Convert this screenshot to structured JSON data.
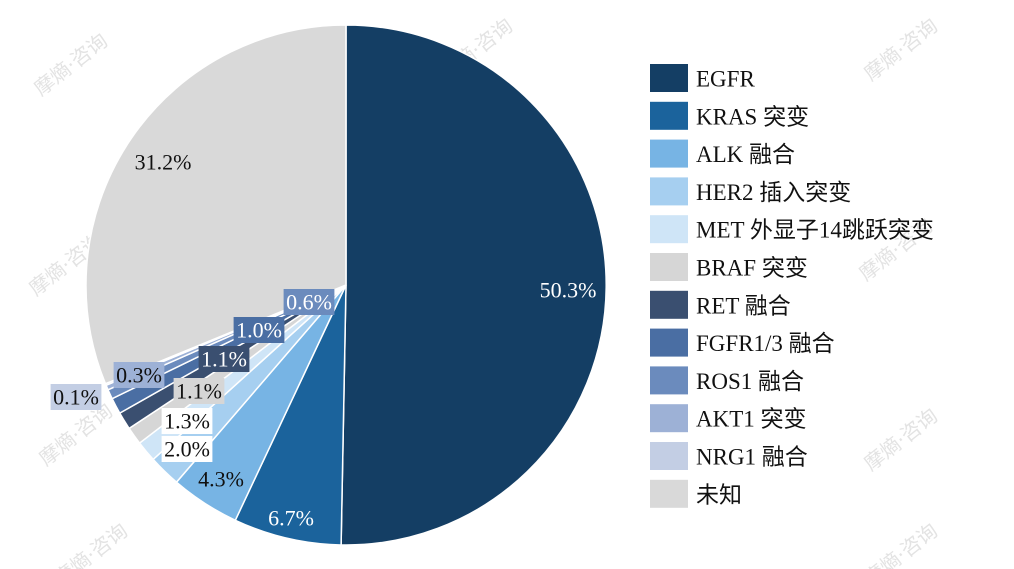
{
  "watermark_text": "摩熵·咨询",
  "chart_data": {
    "type": "pie",
    "title": "",
    "start_angle_deg": 0,
    "direction": "clockwise",
    "slices": [
      {
        "name": "EGFR",
        "value": 50.3,
        "label": "50.3%",
        "color": "#143e64"
      },
      {
        "name": "KRAS 突变",
        "value": 6.7,
        "label": "6.7%",
        "color": "#1b639c"
      },
      {
        "name": "ALK 融合",
        "value": 4.3,
        "label": "4.3%",
        "color": "#77b4e4"
      },
      {
        "name": "HER2 插入突变",
        "value": 2.0,
        "label": "2.0%",
        "color": "#a6cff0"
      },
      {
        "name": "MET 外显子14跳跃突变",
        "value": 1.3,
        "label": "1.3%",
        "color": "#cfe5f7"
      },
      {
        "name": "BRAF 突变",
        "value": 1.1,
        "label": "1.1%",
        "color": "#d6d6d6"
      },
      {
        "name": "RET 融合",
        "value": 1.1,
        "label": "1.1%",
        "color": "#3a4f70"
      },
      {
        "name": "FGFR1/3 融合",
        "value": 1.0,
        "label": "1.0%",
        "color": "#4a6ea3"
      },
      {
        "name": "ROS1 融合",
        "value": 0.6,
        "label": "0.6%",
        "color": "#6b8bbd"
      },
      {
        "name": "AKT1 突变",
        "value": 0.3,
        "label": "0.3%",
        "color": "#9db1d6"
      },
      {
        "name": "NRG1 融合",
        "value": 0.1,
        "label": "0.1%",
        "color": "#c3cee4"
      },
      {
        "name": "未知",
        "value": 31.2,
        "label": "31.2%",
        "color": "#d9d9d9"
      }
    ],
    "legend_position": "right"
  }
}
